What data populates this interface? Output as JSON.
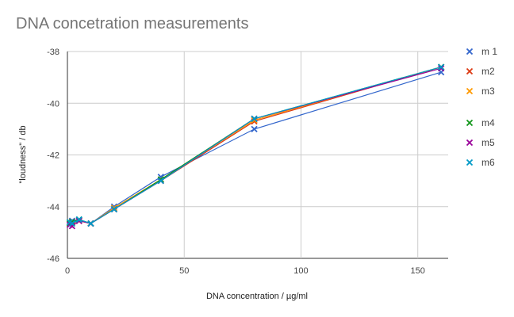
{
  "chart_data": {
    "type": "line",
    "title": "DNA concetration measurements",
    "xlabel": "DNA  concentration / µg/ml",
    "ylabel": "\"loudness\" / db",
    "xlim": [
      0,
      163
    ],
    "ylim": [
      -46,
      -38
    ],
    "xticks": [
      0,
      50,
      100,
      150
    ],
    "yticks": [
      -38,
      -40,
      -42,
      -44,
      -46
    ],
    "grid": true,
    "legend_position": "right",
    "x": [
      1,
      2,
      5,
      10,
      20,
      40,
      80,
      160
    ],
    "series": [
      {
        "name": "m 1",
        "color": "#3366CC",
        "values": [
          -44.6,
          -44.55,
          -44.5,
          -44.65,
          -44.0,
          -42.85,
          -41.0,
          -38.8
        ]
      },
      {
        "name": "m2",
        "color": "#DC3912",
        "values": [
          -44.65,
          -44.6,
          -44.55,
          -44.65,
          -44.1,
          -43.0,
          -40.7,
          -38.6
        ]
      },
      {
        "name": "m3",
        "color": "#FF9900",
        "values": [
          -44.6,
          -44.65,
          -44.55,
          -44.65,
          -44.05,
          -42.95,
          -40.65,
          -38.6
        ]
      },
      {
        "name": "m4",
        "color": "#109618",
        "values": [
          -44.65,
          -44.6,
          -44.5,
          -44.65,
          -44.1,
          -42.95,
          -40.6,
          -38.6
        ]
      },
      {
        "name": "m5",
        "color": "#990099",
        "values": [
          -44.7,
          -44.75,
          -44.55,
          -44.65,
          -44.1,
          -43.0,
          -40.6,
          -38.65
        ]
      },
      {
        "name": "m6",
        "color": "#0099C6",
        "values": [
          -44.6,
          -44.65,
          -44.5,
          -44.65,
          -44.1,
          -43.0,
          -40.6,
          -38.6
        ]
      }
    ]
  }
}
